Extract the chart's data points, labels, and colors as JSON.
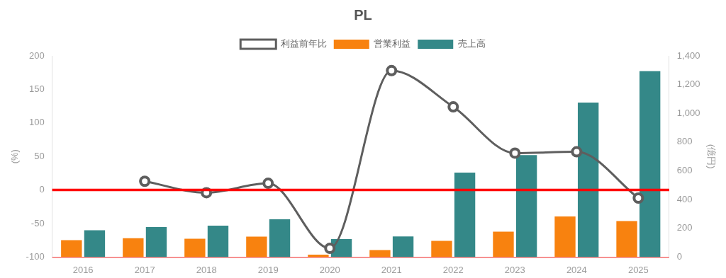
{
  "chart_data": {
    "type": "bar",
    "title": "PL",
    "categories": [
      "2016",
      "2017",
      "2018",
      "2019",
      "2020",
      "2021",
      "2022",
      "2023",
      "2024",
      "2025"
    ],
    "series": [
      {
        "name": "利益前年比",
        "type": "line",
        "color": "#5e5e5e",
        "values": [
          null,
          13,
          -4,
          10,
          -87,
          178,
          124,
          55,
          57,
          -12
        ]
      },
      {
        "name": "営業利益",
        "color": "#f8820f",
        "axis": "y2",
        "values": [
          118,
          131,
          128,
          142,
          17,
          49,
          113,
          177,
          282,
          250
        ]
      },
      {
        "name": "売上高",
        "color": "#348888",
        "axis": "y2",
        "values": [
          187,
          209,
          218,
          263,
          125,
          144,
          588,
          710,
          1075,
          1294
        ]
      }
    ],
    "ylabel": "(%)",
    "y2label": "(億円)",
    "ylim": [
      -100,
      200
    ],
    "yticks": [
      -100,
      -50,
      0,
      50,
      100,
      150,
      200
    ],
    "y2lim": [
      0,
      1400
    ],
    "y2ticks": [
      0,
      {
        "value": 200,
        "label": "200"
      },
      {
        "value": 400,
        "label": "400"
      },
      {
        "value": 600,
        "label": "600"
      },
      {
        "value": 800,
        "label": "800"
      },
      {
        "value": 1000,
        "label": "1,000"
      },
      {
        "value": 1200,
        "label": "1,200"
      },
      {
        "value": 1400,
        "label": "1,400"
      }
    ],
    "ref_lines": [
      {
        "axis": "y",
        "value": 0,
        "color": "#ff0000"
      }
    ],
    "legend": "top",
    "grid": false,
    "marker": "circle"
  }
}
